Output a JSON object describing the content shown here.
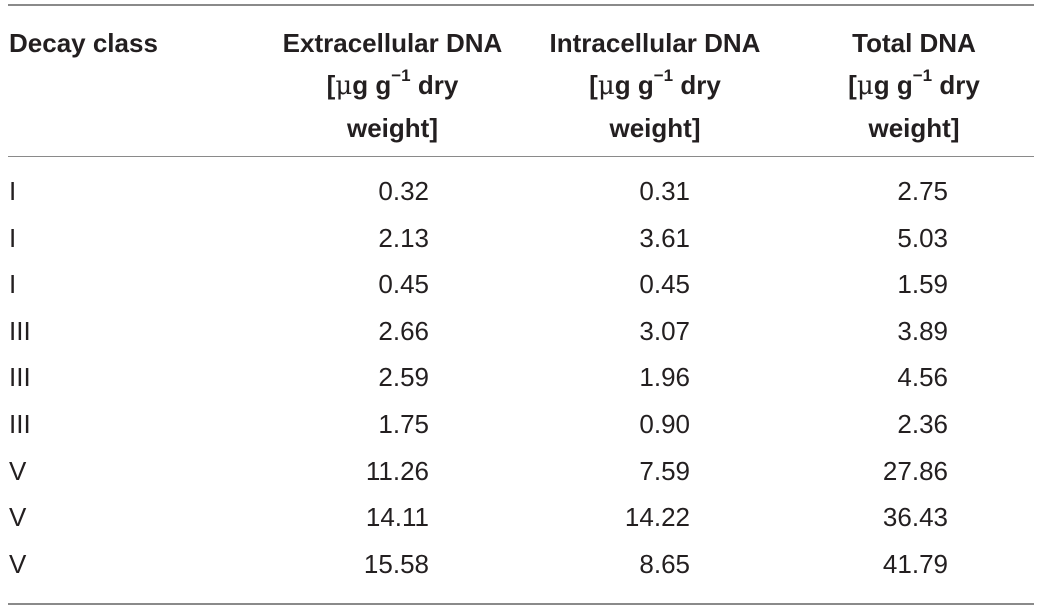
{
  "table": {
    "headers": {
      "decay_class": "Decay class",
      "extracellular": {
        "line1": "Extracellular DNA",
        "unit_open": "[",
        "mu": "μ",
        "unit_rest_a": "g g",
        "exp": "−1",
        "unit_rest_b": " dry",
        "line3": "weight]"
      },
      "intracellular": {
        "line1": "Intracellular DNA",
        "unit_open": "[",
        "mu": "μ",
        "unit_rest_a": "g g",
        "exp": "−1",
        "unit_rest_b": " dry",
        "line3": "weight]"
      },
      "total": {
        "line1": "Total DNA",
        "unit_open": "[",
        "mu": "μ",
        "unit_rest_a": "g g",
        "exp": "−1",
        "unit_rest_b": " dry",
        "line3": "weight]"
      }
    },
    "rows": [
      {
        "decay_class": "I",
        "extracellular": "0.32",
        "intracellular": "0.31",
        "total": "2.75"
      },
      {
        "decay_class": "I",
        "extracellular": "2.13",
        "intracellular": "3.61",
        "total": "5.03"
      },
      {
        "decay_class": "I",
        "extracellular": "0.45",
        "intracellular": "0.45",
        "total": "1.59"
      },
      {
        "decay_class": "III",
        "extracellular": "2.66",
        "intracellular": "3.07",
        "total": "3.89"
      },
      {
        "decay_class": "III",
        "extracellular": "2.59",
        "intracellular": "1.96",
        "total": "4.56"
      },
      {
        "decay_class": "III",
        "extracellular": "1.75",
        "intracellular": "0.90",
        "total": "2.36"
      },
      {
        "decay_class": "V",
        "extracellular": "11.26",
        "intracellular": "7.59",
        "total": "27.86"
      },
      {
        "decay_class": "V",
        "extracellular": "14.11",
        "intracellular": "14.22",
        "total": "36.43"
      },
      {
        "decay_class": "V",
        "extracellular": "15.58",
        "intracellular": "8.65",
        "total": "41.79"
      }
    ]
  }
}
